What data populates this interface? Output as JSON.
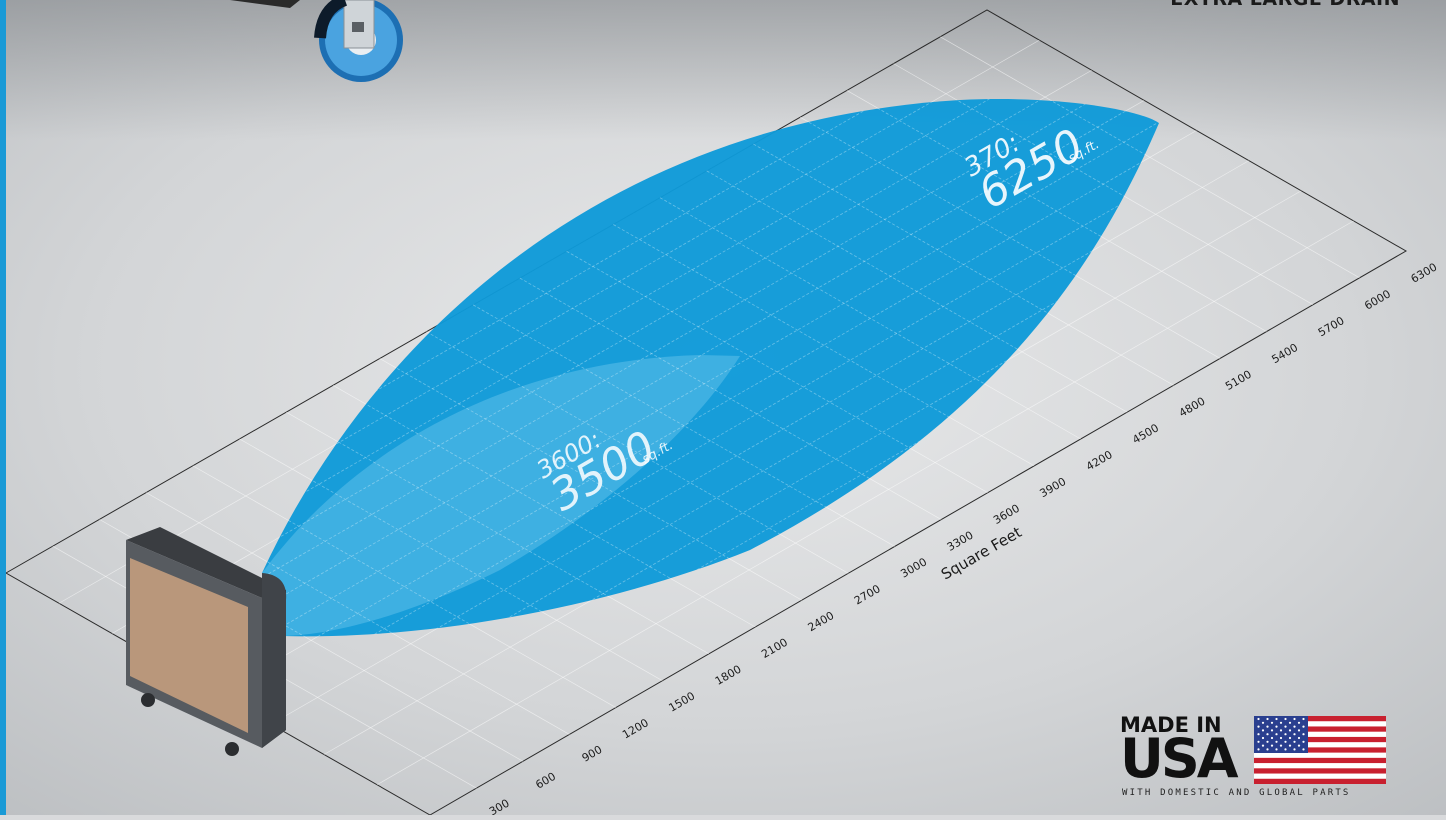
{
  "header": {
    "banner": "EXTRA LARGE DRAIN"
  },
  "chart_data": {
    "type": "area",
    "xlabel": "Square Feet",
    "x_ticks": [
      300,
      600,
      900,
      1200,
      1500,
      1800,
      2100,
      2400,
      2700,
      3000,
      3300,
      3600,
      3900,
      4200,
      4500,
      4800,
      5100,
      5400,
      5700,
      6000,
      6300
    ],
    "series": [
      {
        "name": "370:",
        "value": "6250",
        "unit": "sq.ft.",
        "sqft": 6250,
        "color": "#0f9ad9"
      },
      {
        "name": "3600:",
        "value": "3500",
        "unit": "sq.ft.",
        "sqft": 3500,
        "color": "#4db8e6"
      }
    ]
  },
  "badge": {
    "line1": "MADE IN",
    "line2": "USA",
    "subtitle": "WITH DOMESTIC AND GLOBAL PARTS"
  },
  "colors": {
    "accent": "#1a9ad6",
    "coverage_large": "#0f9ad9",
    "coverage_small": "#4db8e6"
  }
}
